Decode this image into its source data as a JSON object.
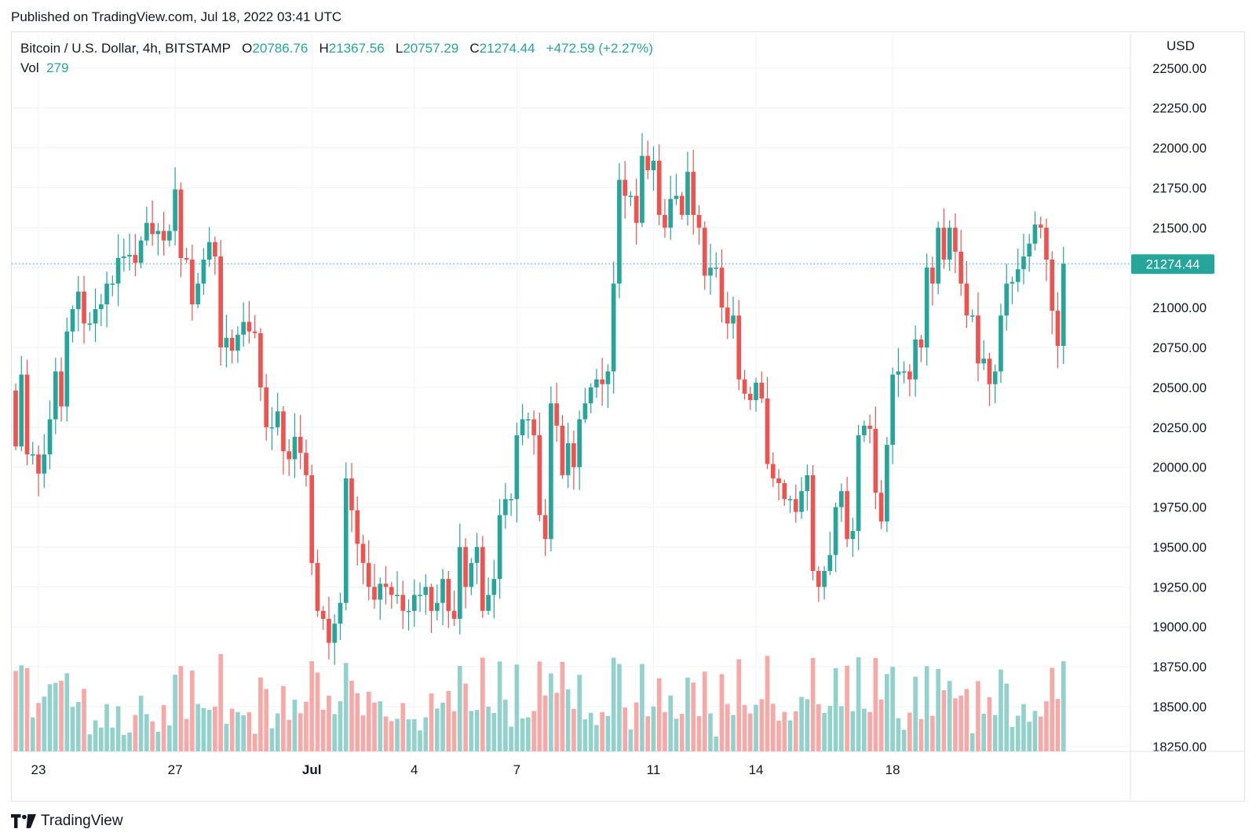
{
  "header": {
    "published_text": "Published on TradingView.com, Jul 18, 2022 03:41 UTC"
  },
  "legend": {
    "symbol": "Bitcoin / U.S. Dollar, 4h, BITSTAMP",
    "o_label": "O",
    "o_value": "20786.76",
    "h_label": "H",
    "h_value": "21367.56",
    "l_label": "L",
    "l_value": "20757.29",
    "c_label": "C",
    "c_value": "21274.44",
    "change": "+472.59 (+2.27%)",
    "vol_label": "Vol",
    "vol_value": "279"
  },
  "axis": {
    "currency": "USD"
  },
  "footer": {
    "brand": "TradingView"
  },
  "colors": {
    "up": "#26a69a",
    "down": "#ef5350",
    "up_vol": "#93d2cc",
    "down_vol": "#f7a9a7",
    "grid": "#f0f3fa",
    "axis_text": "#131722"
  },
  "chart_data": {
    "type": "candlestick",
    "interval": "4h",
    "y_ticks": [
      18250,
      18500,
      18750,
      19000,
      19250,
      19500,
      19750,
      20000,
      20250,
      20500,
      20750,
      21000,
      21250,
      21500,
      21750,
      22000,
      22250,
      22500
    ],
    "ylim": [
      18220,
      22720
    ],
    "last_price": 21274.44,
    "last_price_label": "21274.44",
    "x_ticks": [
      {
        "label": "23",
        "index": 4,
        "bold": false
      },
      {
        "label": "27",
        "index": 28,
        "bold": false
      },
      {
        "label": "Jul",
        "index": 52,
        "bold": true
      },
      {
        "label": "4",
        "index": 70,
        "bold": false
      },
      {
        "label": "7",
        "index": 88,
        "bold": false
      },
      {
        "label": "11",
        "index": 112,
        "bold": false
      },
      {
        "label": "14",
        "index": 130,
        "bold": false
      },
      {
        "label": "18",
        "index": 154,
        "bold": false
      }
    ],
    "closes": [
      20130,
      20580,
      20080,
      20080,
      19960,
      20080,
      20300,
      20600,
      20380,
      20850,
      20990,
      21100,
      20900,
      20900,
      20990,
      21020,
      21150,
      21150,
      21310,
      21320,
      21330,
      21280,
      21420,
      21530,
      21460,
      21480,
      21420,
      21480,
      21740,
      21310,
      21300,
      21020,
      21150,
      21300,
      21410,
      21320,
      20750,
      20810,
      20730,
      20830,
      20910,
      20850,
      20840,
      20500,
      20250,
      20250,
      20350,
      20100,
      20050,
      20190,
      20090,
      19950,
      19400,
      19100,
      19050,
      18900,
      19020,
      19150,
      19930,
      19730,
      19520,
      19400,
      19250,
      19170,
      19270,
      19250,
      19200,
      19200,
      19100,
      19100,
      19200,
      19200,
      19250,
      19100,
      19150,
      19300,
      19100,
      19050,
      19500,
      19250,
      19400,
      19500,
      19100,
      19200,
      19300,
      19700,
      19800,
      19800,
      20200,
      20300,
      20300,
      20200,
      19700,
      19550,
      20400,
      20260,
      19950,
      20150,
      20000,
      20300,
      20400,
      20500,
      20550,
      20520,
      20600,
      21150,
      21800,
      21700,
      21700,
      21530,
      21950,
      21860,
      21920,
      21580,
      21500,
      21680,
      21700,
      21580,
      21850,
      21580,
      21500,
      21200,
      21250,
      21250,
      21000,
      20900,
      20950,
      20550,
      20460,
      20420,
      20530,
      20430,
      20020,
      19930,
      19900,
      19800,
      19800,
      19720,
      19850,
      19950,
      19350,
      19250,
      19350,
      19450,
      19750,
      19850,
      19550,
      19600,
      20200,
      20260,
      20240,
      19840,
      19660,
      20140,
      20580,
      20600,
      20600,
      20550,
      20800,
      20750,
      21250,
      21150,
      21500,
      21300,
      21500,
      21350,
      21150,
      20950,
      20950,
      20650,
      20680,
      20520,
      20600,
      20950,
      21150,
      21160,
      21240,
      21320,
      21400,
      21520,
      21500,
      21300,
      20980,
      20760,
      21274
    ]
  }
}
